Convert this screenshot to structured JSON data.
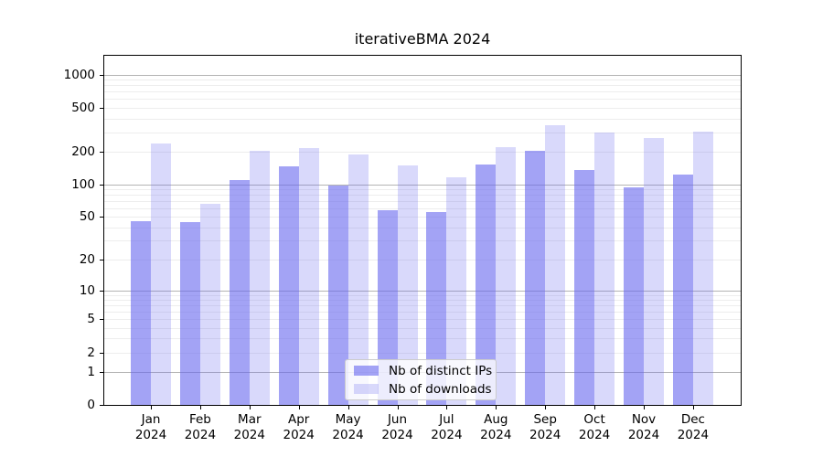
{
  "title": "iterativeBMA 2024",
  "chart_data": {
    "type": "bar",
    "title": "iterativeBMA 2024",
    "categories": [
      "Jan 2024",
      "Feb 2024",
      "Mar 2024",
      "Apr 2024",
      "May 2024",
      "Jun 2024",
      "Jul 2024",
      "Aug 2024",
      "Sep 2024",
      "Oct 2024",
      "Nov 2024",
      "Dec 2024"
    ],
    "series": [
      {
        "name": "Nb of distinct IPs",
        "color": "rgba(102,102,238,0.60)",
        "values": [
          46,
          45,
          110,
          146,
          97,
          58,
          55,
          151,
          204,
          134,
          94,
          122
        ]
      },
      {
        "name": "Nb of downloads",
        "color": "rgba(102,102,238,0.25)",
        "values": [
          238,
          66,
          201,
          216,
          186,
          149,
          117,
          220,
          349,
          299,
          263,
          304
        ]
      }
    ],
    "xlabel": "",
    "ylabel": "",
    "y_scale": "log10(value+1)",
    "y_ticks": [
      0,
      1,
      2,
      5,
      10,
      20,
      50,
      100,
      200,
      500,
      1000
    ],
    "y_axis_max": 1485,
    "major_gridlines": [
      1,
      10,
      100,
      1000
    ],
    "minor_gridlines": [
      2,
      3,
      4,
      5,
      6,
      7,
      8,
      9,
      20,
      30,
      40,
      50,
      60,
      70,
      80,
      90,
      200,
      300,
      400,
      500,
      600,
      700,
      800,
      900
    ],
    "grid": true,
    "legend_position": "lower center"
  },
  "colors": {
    "bar_distinct_ips": "rgba(102,102,238,0.60)",
    "bar_downloads": "rgba(102,102,238,0.25)",
    "grid_major": "#b3b3b3",
    "grid_minor": "#ededed",
    "axis": "#000000",
    "legend_border": "#cccccc",
    "background": "#ffffff"
  }
}
